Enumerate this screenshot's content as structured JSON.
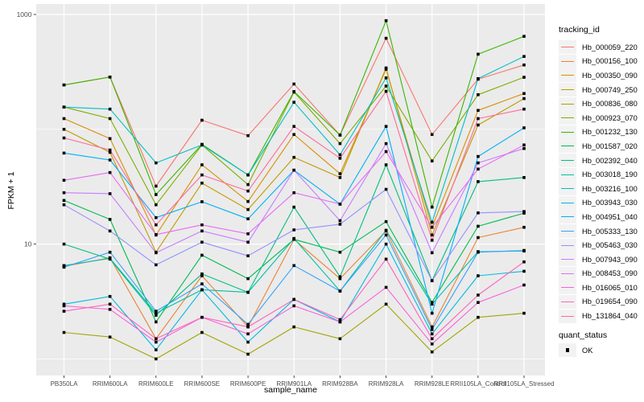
{
  "colors": {
    "panel_bg": "#EBEBEB",
    "grid": "#FFFFFF",
    "point": "#000000",
    "tick_text": "#4D4D4D",
    "tick_mark": "#333333",
    "key_bg": "#F2F2F2"
  },
  "legend": {
    "title": "tracking_id",
    "quant_title": "quant_status",
    "quant_ok_label": "OK"
  },
  "chart_data": {
    "type": "line",
    "title": "",
    "xlabel": "sample_name",
    "ylabel": "FPKM + 1",
    "yscale": "log10",
    "ylim": [
      0.75,
      1100
    ],
    "grid": true,
    "legend_position": "right",
    "y_ticks": [
      {
        "value": 1000,
        "label": "1000"
      },
      {
        "value": 10,
        "label": "10"
      }
    ],
    "y_minor": [
      100,
      1
    ],
    "x": [
      "PB350LA",
      "RRIM600LA",
      "RRIM600LE",
      "RRIM600SE",
      "RRIM600PE",
      "RRIM901LA",
      "RRIM928BA",
      "RRIM928LA",
      "RRIM928LE",
      "RRII105LA_Control",
      "RRII105LA_Stressed"
    ],
    "series": [
      {
        "name": "Hb_000059_220",
        "color": "#F8766D",
        "values": [
          243,
          285,
          32,
          120,
          88,
          248,
          89,
          620,
          90,
          273,
          363
        ]
      },
      {
        "name": "Hb_000156_100",
        "color": "#EA8331",
        "values": [
          6.4,
          7.6,
          1.5,
          5.3,
          1.9,
          11,
          5.0,
          13,
          1.9,
          11.4,
          14
        ]
      },
      {
        "name": "Hb_000350_090",
        "color": "#D89000",
        "values": [
          124,
          83,
          12,
          49,
          23.5,
          90,
          41,
          333,
          14,
          146,
          205
        ]
      },
      {
        "name": "Hb_000749_250",
        "color": "#C09B00",
        "values": [
          100,
          63,
          8.5,
          34,
          20,
          57,
          38,
          342,
          12,
          109,
          185
        ]
      },
      {
        "name": "Hb_000836_080",
        "color": "#A3A500",
        "values": [
          1.7,
          1.55,
          1.0,
          1.7,
          1.1,
          1.9,
          1.5,
          3.0,
          1.15,
          2.3,
          2.5
        ]
      },
      {
        "name": "Hb_000923_070",
        "color": "#7CAE00",
        "values": [
          156,
          124,
          22,
          73,
          33,
          211,
          75,
          238,
          53,
          200,
          284
        ]
      },
      {
        "name": "Hb_001232_130",
        "color": "#39B600",
        "values": [
          243,
          285,
          27,
          74,
          40,
          213,
          89,
          883,
          21,
          451,
          645
        ]
      },
      {
        "name": "Hb_001587_020",
        "color": "#00BB4E",
        "values": [
          24,
          16.4,
          2.1,
          8.0,
          5.0,
          11,
          8.5,
          15.7,
          3.1,
          14.3,
          18.6
        ]
      },
      {
        "name": "Hb_002392_040",
        "color": "#00BF7D",
        "values": [
          10,
          7.4,
          2.4,
          5.5,
          3.8,
          21,
          5.2,
          49,
          4.8,
          35,
          38
        ]
      },
      {
        "name": "Hb_003018_190",
        "color": "#00C1A3",
        "values": [
          6.5,
          7.5,
          2.5,
          4.0,
          3.8,
          11.2,
          3.9,
          13.2,
          3.0,
          8.6,
          8.7
        ]
      },
      {
        "name": "Hb_003216_100",
        "color": "#00BFC4",
        "values": [
          156,
          150,
          51,
          73,
          40,
          172,
          60,
          280,
          15.5,
          276,
          431
        ]
      },
      {
        "name": "Hb_003943_030",
        "color": "#00BAE0",
        "values": [
          3.0,
          3.5,
          1.2,
          4.0,
          1.4,
          3.3,
          2.1,
          10,
          1.65,
          5.3,
          5.8
        ]
      },
      {
        "name": "Hb_004951_040",
        "color": "#00B0F6",
        "values": [
          62,
          54,
          17,
          23.4,
          16.6,
          44,
          22.3,
          106,
          2.5,
          58,
          103
        ]
      },
      {
        "name": "Hb_005333_130",
        "color": "#35A2FF",
        "values": [
          6.3,
          8.5,
          2.6,
          4.5,
          2.0,
          6.5,
          3.9,
          12,
          1.8,
          8.5,
          8.8
        ]
      },
      {
        "name": "Hb_005463_030",
        "color": "#9590FF",
        "values": [
          22,
          13,
          6.6,
          10.4,
          7.9,
          13.3,
          14.9,
          30,
          4.8,
          18.7,
          19.2
        ]
      },
      {
        "name": "Hb_007943_090",
        "color": "#C77CFF",
        "values": [
          28,
          27.5,
          8.4,
          13,
          10.4,
          44,
          16,
          75,
          8.4,
          51,
          68
        ]
      },
      {
        "name": "Hb_008453_090",
        "color": "#E76BF3",
        "values": [
          36,
          42,
          12.1,
          14.7,
          12.3,
          28,
          22.3,
          64,
          14,
          45,
          73
        ]
      },
      {
        "name": "Hb_016065_010",
        "color": "#FA62DB",
        "values": [
          2.9,
          2.7,
          1.4,
          2.3,
          1.65,
          2.9,
          2.1,
          4.2,
          1.35,
          3.1,
          4.4
        ]
      },
      {
        "name": "Hb_019654_090",
        "color": "#FF62BC",
        "values": [
          2.6,
          3.0,
          1.5,
          2.3,
          1.9,
          3.3,
          2.2,
          7.4,
          1.5,
          3.6,
          7.0
        ]
      },
      {
        "name": "Hb_131864_040",
        "color": "#FF6A98",
        "values": [
          84,
          66,
          14.7,
          40,
          29,
          106,
          56,
          214,
          10.8,
          124,
          150
        ]
      }
    ]
  }
}
